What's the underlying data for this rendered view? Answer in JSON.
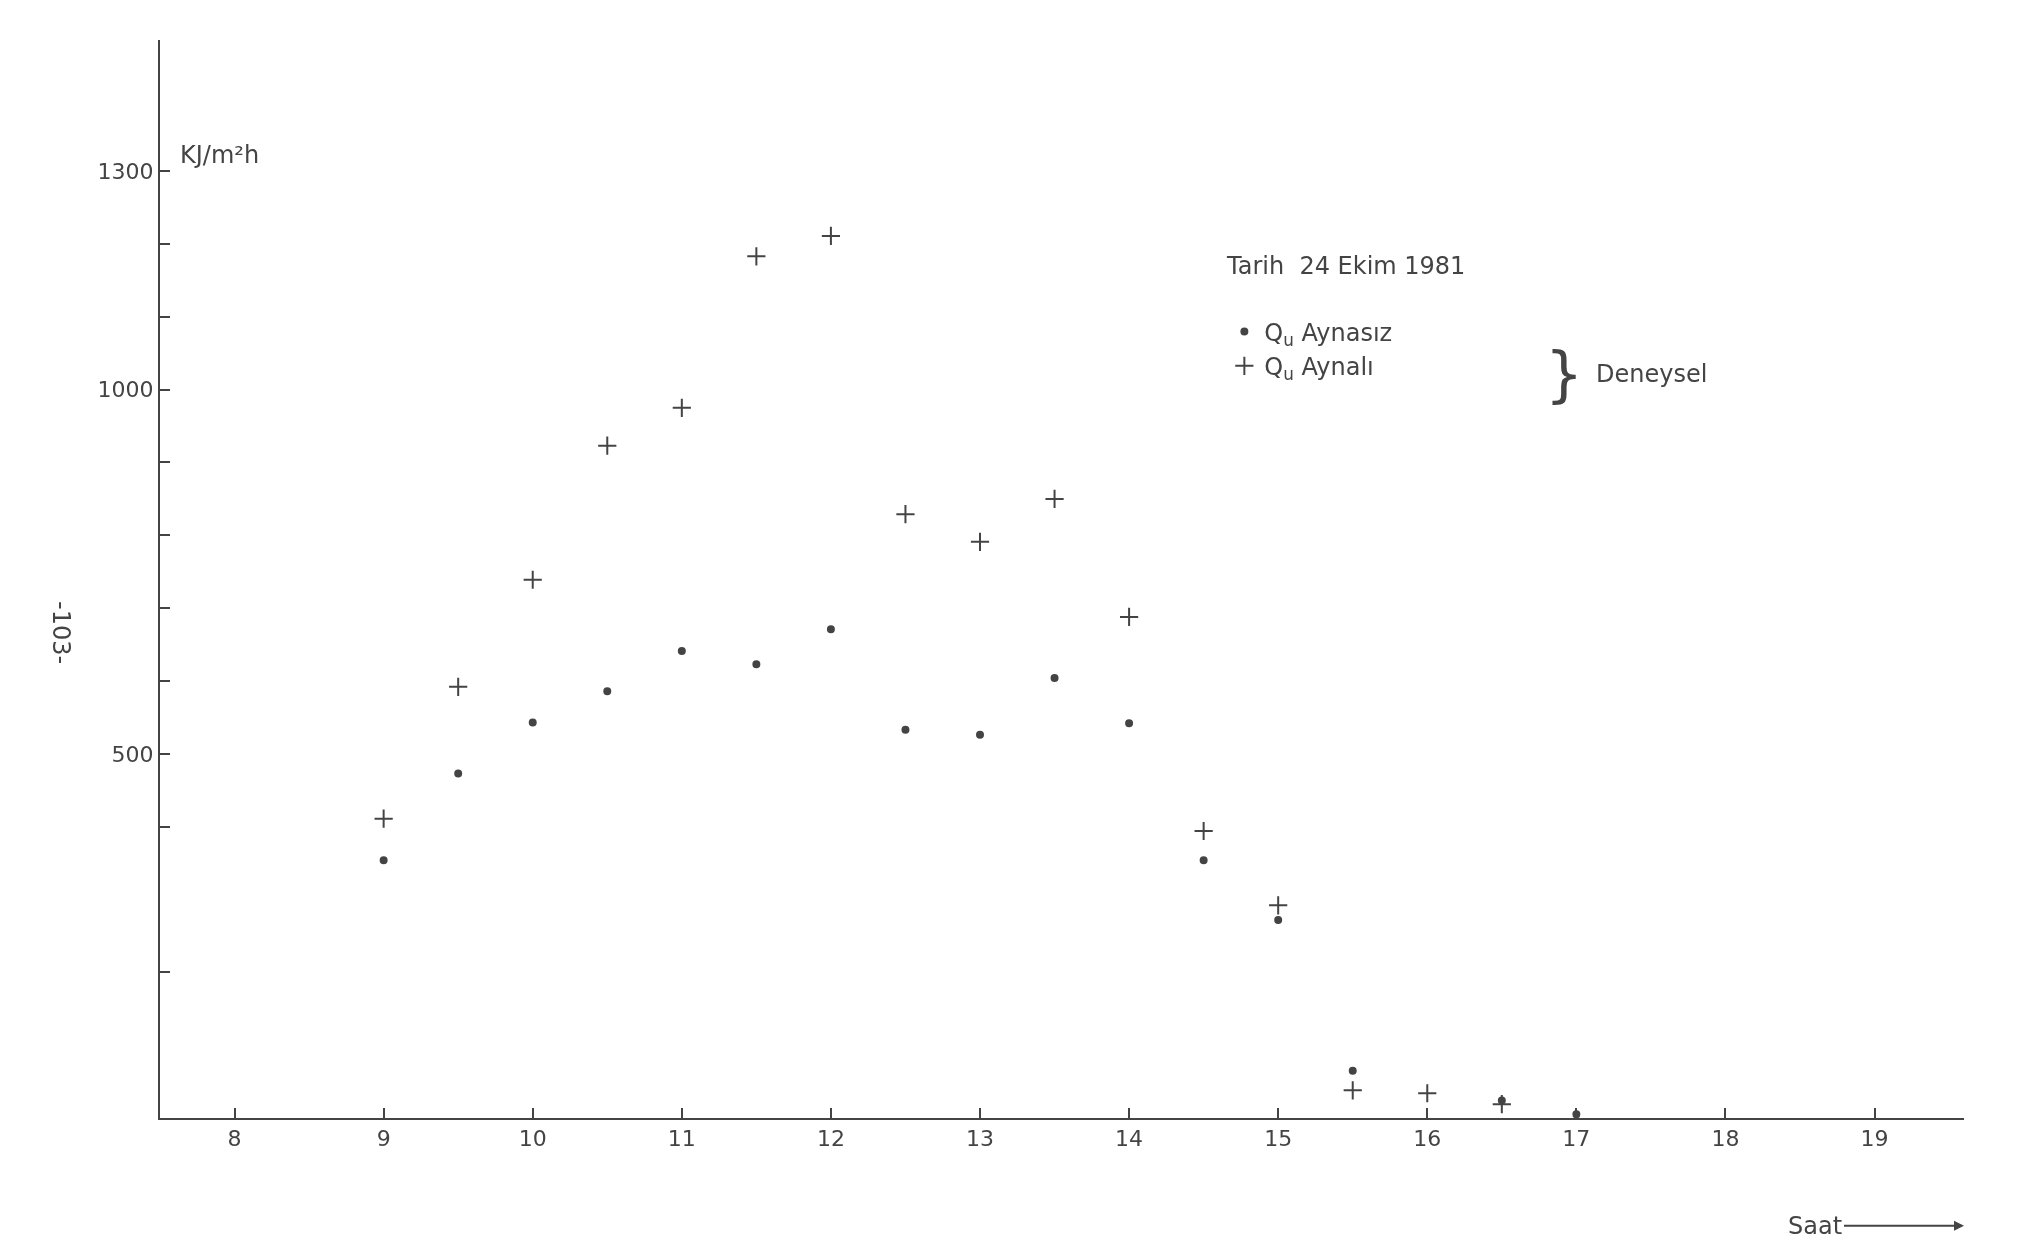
{
  "chart_data": {
    "type": "scatter",
    "xlabel": "Saat",
    "ylabel": "KJ/m²h",
    "annotations": [
      "Deneysel",
      "-103-",
      "}",
      "Tarih  24 Ekim 1981"
    ],
    "x": [
      9,
      9.5,
      10,
      10.5,
      11,
      11.5,
      12,
      12.5,
      13,
      13.5,
      14,
      14.5,
      15,
      15.5,
      16,
      16.5,
      17
    ],
    "series": [
      {
        "name": "Q$_{u}$ Aynasız",
        "color": "#444444",
        "marker": "circle",
        "values": [
          354,
          473,
          543,
          586,
          641,
          623,
          671,
          533,
          526,
          604,
          542,
          354,
          272,
          65,
          null,
          24,
          5
        ]
      },
      {
        "name": "Q$_{u}$ Aynalı",
        "color": "#444444",
        "marker": "cross",
        "values": [
          411,
          592,
          739,
          923,
          975,
          1183,
          1211,
          829,
          791,
          850,
          688,
          394,
          292,
          38,
          34,
          19,
          null
        ]
      }
    ],
    "xlim": [
      7.5,
      19.6
    ],
    "xticks": [
      8,
      9,
      10,
      11,
      12,
      13,
      14,
      15,
      16,
      17,
      18,
      19
    ],
    "ylim": [
      0,
      1480
    ],
    "yticks": [
      {
        "value": 200,
        "label": null
      },
      {
        "value": 400,
        "label": null
      },
      500,
      {
        "value": 600,
        "label": null
      },
      {
        "value": 700,
        "label": null
      },
      {
        "value": 800,
        "label": null
      },
      {
        "value": 900,
        "label": null
      },
      1000,
      {
        "value": 1100,
        "label": null
      },
      {
        "value": 1200,
        "label": null
      },
      1300
    ],
    "legend": "top right"
  }
}
